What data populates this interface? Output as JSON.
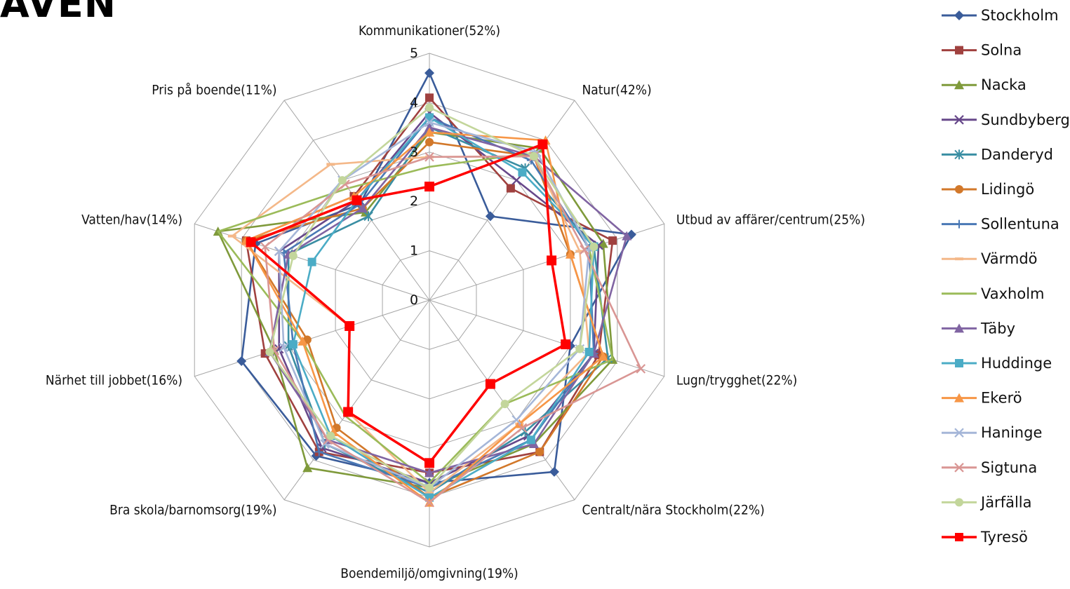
{
  "page": {
    "corner_title": "AVEN"
  },
  "chart_data": {
    "type": "radar",
    "title": "",
    "categories": [
      "Kommunikationer(52%)",
      "Natur(42%)",
      "Utbud av affärer/centrum(25%)",
      "Lugn/trygghet(22%)",
      "Centralt/nära Stockholm(22%)",
      "Boendemiljö/omgivning(19%)",
      "Bra skola/barnomsorg(19%)",
      "Närhet till jobbet(16%)",
      "Vatten/hav(14%)",
      "Pris på boende(11%)"
    ],
    "rlim": [
      0,
      5
    ],
    "ticks": [
      0,
      1,
      2,
      3,
      4,
      5
    ],
    "grid": true,
    "legend_position": "right",
    "series": [
      {
        "name": "Stockholm",
        "color": "#3a5c9a",
        "marker": "diamond",
        "values": [
          4.6,
          2.1,
          4.3,
          3.0,
          4.3,
          3.7,
          3.9,
          4.0,
          3.7,
          2.4
        ]
      },
      {
        "name": "Solna",
        "color": "#a0413f",
        "marker": "square",
        "values": [
          4.1,
          2.8,
          3.9,
          3.6,
          3.8,
          3.5,
          3.8,
          3.5,
          3.9,
          2.6
        ]
      },
      {
        "name": "Nacka",
        "color": "#7f9a3b",
        "marker": "triangle",
        "values": [
          3.4,
          3.8,
          3.7,
          3.9,
          3.6,
          3.8,
          4.2,
          3.3,
          4.5,
          2.2
        ]
      },
      {
        "name": "Sundbyberg",
        "color": "#67488a",
        "marker": "x",
        "values": [
          3.8,
          3.0,
          3.6,
          3.5,
          3.4,
          3.7,
          3.7,
          3.2,
          3.2,
          2.5
        ]
      },
      {
        "name": "Danderyd",
        "color": "#3a8ea3",
        "marker": "star",
        "values": [
          3.5,
          3.3,
          3.5,
          3.8,
          3.3,
          3.9,
          3.6,
          3.0,
          3.0,
          2.1
        ]
      },
      {
        "name": "Lidingö",
        "color": "#d2782a",
        "marker": "circle",
        "values": [
          3.2,
          3.6,
          3.0,
          3.7,
          3.8,
          4.0,
          3.2,
          2.6,
          3.9,
          2.3
        ]
      },
      {
        "name": "Sollentuna",
        "color": "#4a78b5",
        "marker": "plus",
        "values": [
          3.7,
          3.5,
          3.4,
          3.5,
          3.5,
          3.8,
          3.8,
          2.9,
          3.1,
          2.4
        ]
      },
      {
        "name": "Värmdö",
        "color": "#f4b889",
        "marker": "dash",
        "values": [
          2.9,
          3.6,
          3.2,
          3.4,
          3.1,
          3.9,
          2.8,
          1.7,
          4.2,
          3.4
        ]
      },
      {
        "name": "Vaxholm",
        "color": "#9bbb59",
        "marker": "none",
        "values": [
          2.7,
          3.7,
          3.4,
          3.9,
          2.6,
          3.7,
          2.9,
          2.7,
          4.5,
          2.8
        ]
      },
      {
        "name": "Täby",
        "color": "#8064a2",
        "marker": "triangle",
        "values": [
          3.5,
          3.6,
          4.2,
          3.5,
          3.6,
          3.5,
          3.5,
          3.4,
          3.0,
          2.3
        ]
      },
      {
        "name": "Huddinge",
        "color": "#4bacc6",
        "marker": "square",
        "values": [
          3.7,
          3.2,
          3.5,
          3.4,
          3.5,
          4.0,
          3.4,
          2.9,
          2.5,
          2.5
        ]
      },
      {
        "name": "Ekerö",
        "color": "#f79646",
        "marker": "triangle",
        "values": [
          3.4,
          4.0,
          3.0,
          3.7,
          3.1,
          4.1,
          3.3,
          2.7,
          3.9,
          2.6
        ]
      },
      {
        "name": "Haninge",
        "color": "#a5b6d8",
        "marker": "x",
        "values": [
          3.6,
          3.7,
          3.4,
          3.2,
          3.0,
          3.8,
          3.6,
          3.1,
          3.2,
          3.0
        ]
      },
      {
        "name": "Sigtuna",
        "color": "#d99694",
        "marker": "x",
        "values": [
          2.9,
          3.6,
          3.3,
          4.5,
          3.2,
          4.1,
          3.5,
          3.3,
          3.5,
          2.9
        ]
      },
      {
        "name": "Järfälla",
        "color": "#c3d69b",
        "marker": "circle",
        "values": [
          3.9,
          3.6,
          3.5,
          3.2,
          2.6,
          3.8,
          3.4,
          3.4,
          2.9,
          3.0
        ]
      },
      {
        "name": "Tyresö",
        "color": "#ff0000",
        "marker": "square",
        "values": [
          2.3,
          3.9,
          2.6,
          2.9,
          2.1,
          3.3,
          2.8,
          1.7,
          3.8,
          2.5
        ]
      }
    ]
  }
}
